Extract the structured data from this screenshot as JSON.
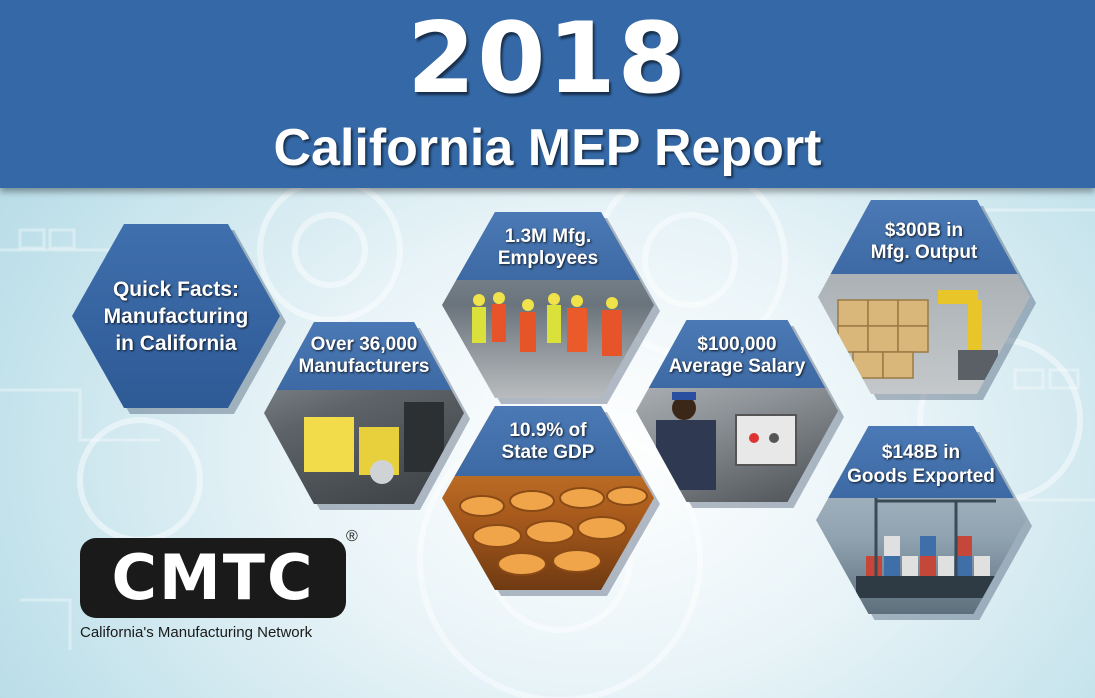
{
  "header": {
    "year": "2018",
    "title": "California MEP Report"
  },
  "quick_facts": {
    "line1": "Quick Facts:",
    "line2": "Manufacturing",
    "line3": "in California"
  },
  "facts": [
    {
      "line1": "Over 36,000",
      "line2": "Manufacturers"
    },
    {
      "line1": "1.3M Mfg.",
      "line2": "Employees"
    },
    {
      "line1": "10.9% of",
      "line2": "State GDP"
    },
    {
      "line1": "$100,000",
      "line2": "Average Salary"
    },
    {
      "line1": "$300B in",
      "line2": "Mfg. Output"
    },
    {
      "line1": "$148B in",
      "line2": "Goods Exported"
    }
  ],
  "logo": {
    "name": "CMTC",
    "registered": "®",
    "tagline": "California's Manufacturing Network"
  },
  "colors": {
    "banner": "#3468a6",
    "hex_label": "#3d6aa4",
    "logo_bg": "#1a1a1a"
  }
}
